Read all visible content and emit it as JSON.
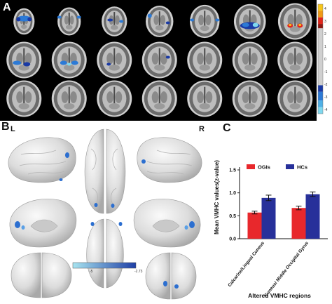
{
  "panels": {
    "a": {
      "label": "A"
    },
    "b": {
      "label": "B",
      "left": "L",
      "right": "R",
      "colorbar": {
        "min": "-5",
        "max": "-2.73",
        "low_color": "#a8e4f0",
        "high_color": "#1f3fa6"
      }
    },
    "c": {
      "label": "C"
    }
  },
  "colorbar_a": {
    "ticks": [
      "4",
      "3",
      "2",
      "1",
      "0",
      "-1",
      "-2",
      "-3",
      "-4"
    ],
    "colors": {
      "pos_high": "#f6c51a",
      "pos_mid": "#e2261b",
      "pos_low": "#8d1711",
      "neg_low": "#1a3aa5",
      "neg_mid": "#2c7ad6",
      "neg_high": "#7fd8ef",
      "neutral": "#d0d0d0"
    }
  },
  "chart_data": {
    "type": "bar",
    "ylabel": "Mean VMHC values(z-value)",
    "xlabel": "Altered  VMHC regions",
    "categories": [
      "Calcarine/Lingual Cuneus",
      "Cuneus/ Middle Occipital Gyrus"
    ],
    "series": [
      {
        "name": "OGIs",
        "values": [
          0.57,
          0.67
        ],
        "errors": [
          0.03,
          0.04
        ],
        "color": "#e8282c"
      },
      {
        "name": "HCs",
        "values": [
          0.89,
          0.97
        ],
        "errors": [
          0.06,
          0.05
        ],
        "color": "#27309a"
      }
    ],
    "ylim": [
      0,
      1.5
    ],
    "yticks": [
      "0.0",
      "0.5",
      "1.0",
      "1.5"
    ],
    "legend_position": "top"
  }
}
